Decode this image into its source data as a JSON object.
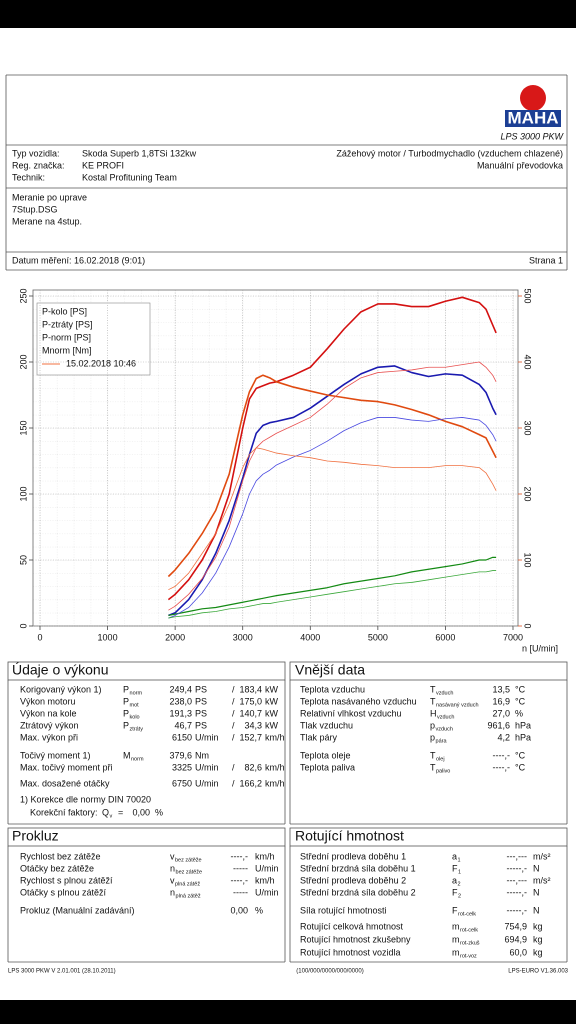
{
  "header": {
    "logo": "MAHA",
    "model": "LPS 3000 PKW"
  },
  "vehicle": {
    "rows": [
      [
        "Typ vozidla:",
        "Skoda Superb 1,8TSi 132kw"
      ],
      [
        "Reg. značka:",
        "KE PROFI"
      ],
      [
        "Technik:",
        "Kostal Profituning Team"
      ]
    ],
    "engine": "Zážehový motor / Turbodmychadlo (vzduchem chlazené)",
    "gearbox": "Manuální převodovka"
  },
  "notes": [
    "Meranie po uprave",
    "7Stup.DSG",
    "Merane na 4stup."
  ],
  "date": "Datum měření: 16.02.2018 (9:01)",
  "page": "Strana 1",
  "chart_data": {
    "type": "line",
    "xlabel": "n [U/min]",
    "xlim": [
      0,
      7000
    ],
    "xticks": [
      0,
      1000,
      2000,
      3000,
      4000,
      5000,
      6000,
      7000
    ],
    "ylim": [
      0,
      250
    ],
    "yticks": [
      0,
      50,
      100,
      150,
      200,
      250
    ],
    "y2lim": [
      0,
      500
    ],
    "y2ticks": [
      0,
      100,
      200,
      300,
      400,
      500
    ],
    "y2color": "#e05020",
    "grid": true,
    "comparison_label": "15.02.2018 10:46",
    "x": [
      1900,
      2000,
      2200,
      2400,
      2600,
      2800,
      3000,
      3100,
      3200,
      3300,
      3400,
      3500,
      3750,
      4000,
      4250,
      4500,
      4750,
      5000,
      5250,
      5500,
      5750,
      6000,
      6250,
      6500,
      6600,
      6700,
      6750
    ],
    "series": [
      {
        "name": "P-kolo [PS]",
        "color": "#1a1ab0",
        "line_width": 1.6,
        "values": [
          8,
          10,
          20,
          35,
          55,
          80,
          112,
          130,
          146,
          152,
          154,
          155,
          158,
          165,
          174,
          183,
          191,
          196,
          197,
          192,
          189,
          191,
          190,
          183,
          177,
          165,
          160
        ]
      },
      {
        "name": "P-ztráty [PS]",
        "color": "#138a13",
        "line_width": 1.2,
        "values": [
          8,
          9,
          11,
          13,
          14,
          16,
          18,
          19,
          20,
          21,
          22,
          23,
          25,
          27,
          29,
          32,
          34,
          36,
          38,
          41,
          43,
          45,
          47,
          50,
          50,
          52,
          52
        ]
      },
      {
        "name": "P-norm [PS]",
        "color": "#d41010",
        "line_width": 1.6,
        "values": [
          20,
          24,
          35,
          50,
          70,
          100,
          150,
          172,
          180,
          182,
          184,
          185,
          190,
          196,
          210,
          225,
          238,
          244,
          244,
          242,
          242,
          246,
          249,
          245,
          240,
          228,
          222
        ]
      },
      {
        "name": "Mnorm [Nm]",
        "color": "#e04a10",
        "line_width": 1.6,
        "axis": "y2",
        "values": [
          75,
          85,
          110,
          140,
          175,
          230,
          320,
          355,
          375,
          380,
          376,
          370,
          362,
          356,
          350,
          346,
          342,
          340,
          335,
          328,
          320,
          310,
          302,
          290,
          285,
          265,
          255
        ]
      },
      {
        "color": "#4a4ae0",
        "line_width": 0.8,
        "values": [
          6,
          8,
          14,
          25,
          40,
          60,
          85,
          100,
          110,
          115,
          118,
          122,
          128,
          133,
          140,
          148,
          154,
          158,
          158,
          156,
          155,
          157,
          158,
          156,
          152,
          145,
          140
        ]
      },
      {
        "color": "#3aa83a",
        "line_width": 0.8,
        "values": [
          6,
          7,
          8,
          10,
          11,
          13,
          14,
          15,
          16,
          17,
          17,
          18,
          20,
          22,
          24,
          26,
          28,
          30,
          32,
          33,
          35,
          37,
          39,
          41,
          41,
          42,
          42
        ]
      },
      {
        "color": "#e85050",
        "line_width": 0.8,
        "values": [
          12,
          15,
          24,
          36,
          52,
          75,
          110,
          125,
          135,
          140,
          143,
          146,
          152,
          158,
          168,
          180,
          188,
          192,
          193,
          194,
          196,
          196,
          198,
          200,
          196,
          190,
          185
        ]
      },
      {
        "color": "#f07040",
        "line_width": 0.8,
        "axis": "y2",
        "values": [
          55,
          60,
          80,
          110,
          140,
          185,
          240,
          260,
          270,
          268,
          265,
          262,
          258,
          255,
          250,
          248,
          245,
          243,
          240,
          240,
          240,
          243,
          243,
          240,
          232,
          215,
          205
        ]
      }
    ]
  },
  "performance": {
    "title": "Údaje o výkonu",
    "rows": [
      {
        "label": "Korigovaný výkon 1)",
        "sym": "P",
        "sub": "norm",
        "v1": "249,4",
        "u1": "PS",
        "sep": "/",
        "v2": "183,4",
        "u2": "kW",
        "color": "#e00000"
      },
      {
        "label": "Výkon motoru",
        "sym": "P",
        "sub": "mot",
        "v1": "238,0",
        "u1": "PS",
        "sep": "/",
        "v2": "175,0",
        "u2": "kW",
        "color": "#e00000"
      },
      {
        "label": "Výkon na kole",
        "sym": "P",
        "sub": "kolo",
        "v1": "191,3",
        "u1": "PS",
        "sep": "/",
        "v2": "140,7",
        "u2": "kW",
        "color": "#1010c0"
      },
      {
        "label": "Ztrátový výkon",
        "sym": "P",
        "sub": "ztráty",
        "v1": "46,7",
        "u1": "PS",
        "sep": "/",
        "v2": "34,3",
        "u2": "kW",
        "color": "#109010"
      },
      {
        "label": "Max. výkon při",
        "v1": "6150",
        "u1": "U/min",
        "sep": "/",
        "v2": "152,7",
        "u2": "km/h",
        "muted": "#8a8a8a"
      },
      {
        "label": "Točivý moment 1)",
        "sym": "M",
        "sub": "norm",
        "v1": "379,6",
        "u1": "Nm",
        "color": "#e04010"
      },
      {
        "label": "Max. točivý moment při",
        "v1": "3325",
        "u1": "U/min",
        "sep": "/",
        "v2": "82,6",
        "u2": "km/h",
        "muted": "#8a8a8a"
      },
      {
        "label": "Max. dosažené otáčky",
        "v1": "6750",
        "u1": "U/min",
        "sep": "/",
        "v2": "166,2",
        "u2": "km/h",
        "muted": "#8a8a8a"
      }
    ],
    "footnote": "1) Korekce dle normy DIN 70020",
    "factor_label": "Korekční faktory:",
    "factor_sym": "Q",
    "factor_sub": "v",
    "factor_eq": "=",
    "factor_value": "0,00",
    "factor_unit": "%",
    "footnote_color": "#e00000"
  },
  "external": {
    "title": "Vnější data",
    "rows": [
      {
        "label": "Teplota vzduchu",
        "sym": "T",
        "sub": "vzduch",
        "v1": "13,5",
        "u1": "°C"
      },
      {
        "label": "Teplota nasávaného vzduchu",
        "sym": "T",
        "sub": "nasávaný vzduch",
        "v1": "16,9",
        "u1": "°C"
      },
      {
        "label": "Relativní vlhkost vzduchu",
        "sym": "H",
        "sub": "vzduch",
        "v1": "27,0",
        "u1": "%"
      },
      {
        "label": "Tlak vzduchu",
        "sym": "p",
        "sub": "vzduch",
        "v1": "961,6",
        "u1": "hPa"
      },
      {
        "label": "Tlak páry",
        "sym": "p",
        "sub": "pára",
        "v1": "4,2",
        "u1": "hPa"
      },
      {
        "label": "Teplota oleje",
        "sym": "T",
        "sub": "olej",
        "v1": "----,-",
        "u1": "°C"
      },
      {
        "label": "Teplota paliva",
        "sym": "T",
        "sub": "palivo",
        "v1": "----,-",
        "u1": "°C"
      }
    ]
  },
  "slip": {
    "title": "Prokluz",
    "rows": [
      {
        "label": "Rychlost bez zátěže",
        "sym": "v",
        "sub": "bez zátěže",
        "v1": "----,-",
        "u1": "km/h"
      },
      {
        "label": "Otáčky bez zátěže",
        "sym": "n",
        "sub": "bez zátěže",
        "v1": "-----",
        "u1": "U/min"
      },
      {
        "label": "Rychlost s plnou zátěží",
        "sym": "v",
        "sub": "plná zátěž",
        "v1": "----,-",
        "u1": "km/h"
      },
      {
        "label": "Otáčky s plnou zátěží",
        "sym": "n",
        "sub": "plná zátěž",
        "v1": "-----",
        "u1": "U/min"
      },
      {
        "label": "Prokluz (Manuální zadávání)",
        "v1": "0,00",
        "u1": "%"
      }
    ]
  },
  "rotating": {
    "title": "Rotující hmotnost",
    "rows": [
      {
        "label": "Střední prodleva doběhu 1",
        "sym": "a",
        "sub": "1",
        "v1": "---,---",
        "u1": "m/s²"
      },
      {
        "label": "Střední brzdná síla doběhu 1",
        "sym": "F",
        "sub": "1",
        "v1": "-----,-",
        "u1": "N"
      },
      {
        "label": "Střední prodleva doběhu 2",
        "sym": "a",
        "sub": "2",
        "v1": "---,---",
        "u1": "m/s²"
      },
      {
        "label": "Střední brzdná síla doběhu 2",
        "sym": "F",
        "sub": "2",
        "v1": "-----,-",
        "u1": "N"
      },
      {
        "label": "Síla rotující hmotnosti",
        "sym": "F",
        "sub": "rot-celk",
        "v1": "-----,-",
        "u1": "N"
      },
      {
        "label": "Rotující celková hmotnost",
        "sym": "m",
        "sub": "rot-celk",
        "v1": "754,9",
        "u1": "kg"
      },
      {
        "label": "Rotující hmotnost zkušebny",
        "sym": "m",
        "sub": "rot-zkuš",
        "v1": "694,9",
        "u1": "kg"
      },
      {
        "label": "Rotující hmotnost vozidla",
        "sym": "m",
        "sub": "rot-voz",
        "v1": "60,0",
        "u1": "kg"
      }
    ]
  },
  "footer": {
    "left": "LPS 3000 PKW V 2.01.001 (28.10.2011)",
    "center": "(100/000/0000/000/0000)",
    "right": "LPS-EURO V1.36.003"
  }
}
